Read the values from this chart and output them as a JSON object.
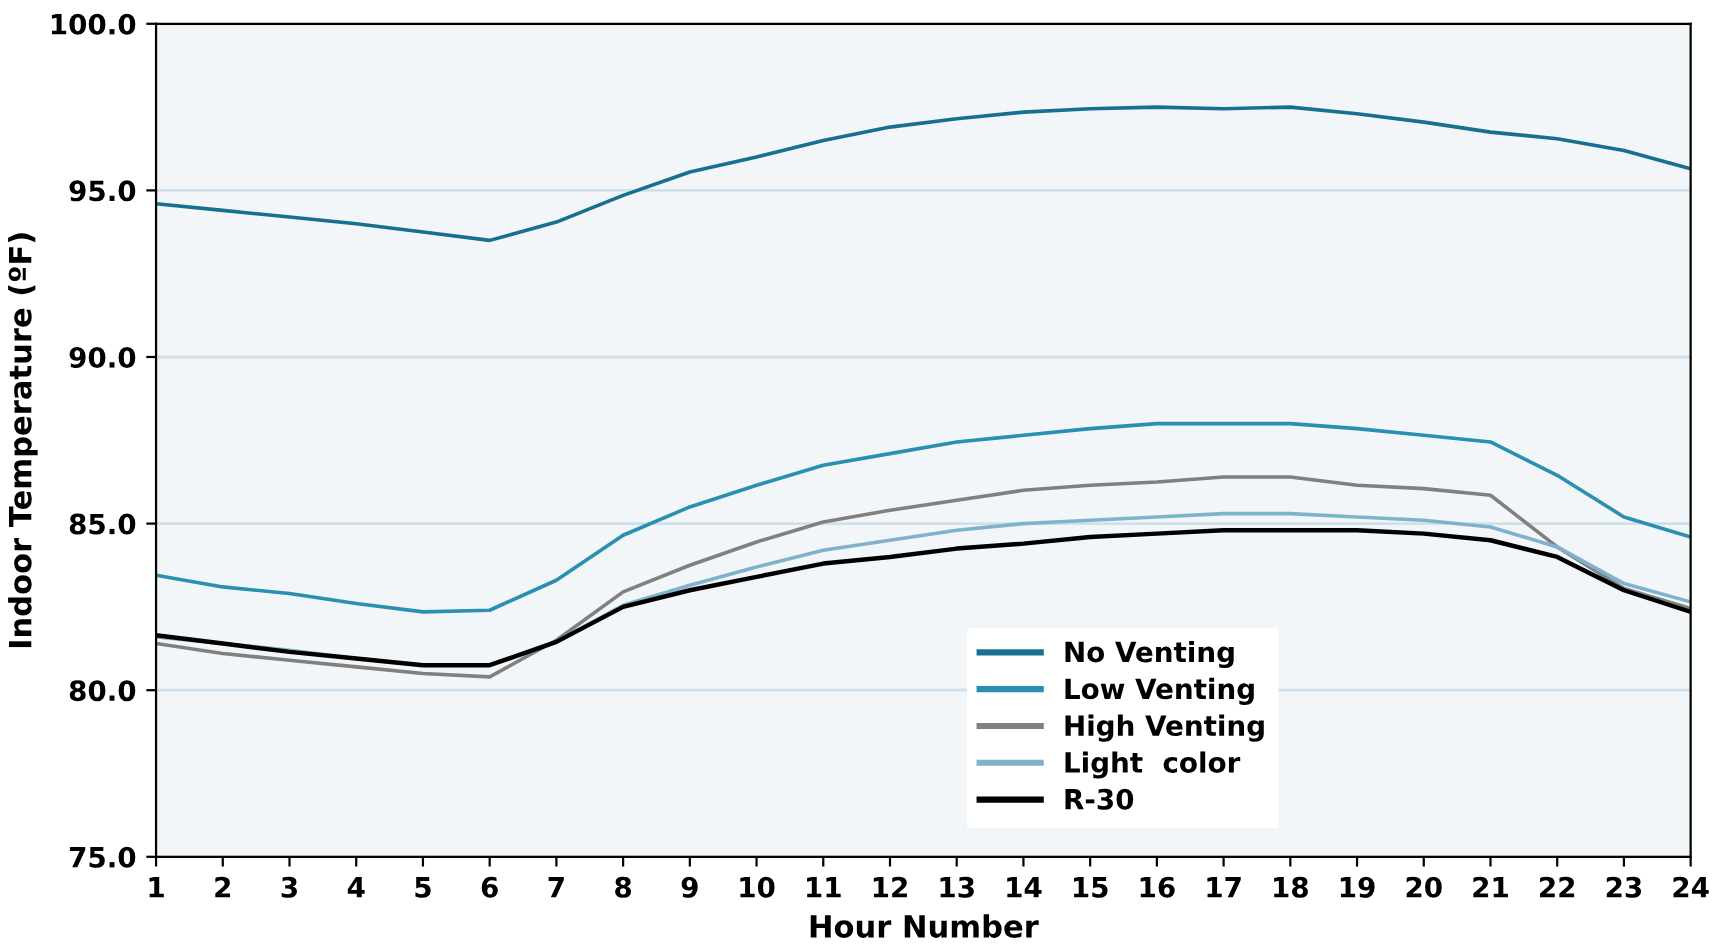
{
  "chart_data": {
    "type": "line",
    "xlabel": "Hour Number",
    "ylabel": "Indoor Temperature (ºF)",
    "x": [
      1,
      2,
      3,
      4,
      5,
      6,
      7,
      8,
      9,
      10,
      11,
      12,
      13,
      14,
      15,
      16,
      17,
      18,
      19,
      20,
      21,
      22,
      23,
      24
    ],
    "xlim": [
      1,
      24
    ],
    "xticks": [
      1,
      2,
      3,
      4,
      5,
      6,
      7,
      8,
      9,
      10,
      11,
      12,
      13,
      14,
      15,
      16,
      17,
      18,
      19,
      20,
      21,
      22,
      23,
      24
    ],
    "ylim": [
      75,
      100
    ],
    "yticks": [
      {
        "value": 75,
        "label": "75.0"
      },
      {
        "value": 80,
        "label": "80.0"
      },
      {
        "value": 85,
        "label": "85.0"
      },
      {
        "value": 90,
        "label": "90.0"
      },
      {
        "value": 95,
        "label": "95.0"
      },
      {
        "value": 100,
        "label": "100.0"
      }
    ],
    "grid": "y",
    "legend": "bottom",
    "marker": "none",
    "line_style": "solid",
    "series": [
      {
        "name": "No Venting",
        "color": "#17708f",
        "values": [
          94.6,
          94.4,
          94.2,
          94.0,
          93.75,
          93.5,
          94.05,
          94.85,
          95.55,
          96.0,
          96.5,
          96.9,
          97.15,
          97.35,
          97.45,
          97.5,
          97.45,
          97.5,
          97.3,
          97.05,
          96.75,
          96.55,
          96.2,
          95.65
        ]
      },
      {
        "name": "Low Venting",
        "color": "#2a8fb0",
        "values": [
          83.45,
          83.1,
          82.9,
          82.6,
          82.35,
          82.4,
          83.3,
          84.65,
          85.5,
          86.15,
          86.75,
          87.1,
          87.45,
          87.65,
          87.85,
          88.0,
          88.0,
          88.0,
          87.85,
          87.65,
          87.45,
          86.45,
          85.2,
          84.6
        ]
      },
      {
        "name": "High Venting",
        "color": "#808080",
        "values": [
          81.4,
          81.1,
          80.9,
          80.7,
          80.5,
          80.4,
          81.5,
          82.95,
          83.75,
          84.45,
          85.05,
          85.4,
          85.7,
          86.0,
          86.15,
          86.25,
          86.4,
          86.4,
          86.15,
          86.05,
          85.85,
          84.3,
          83.05,
          82.45
        ]
      },
      {
        "name": "Light  color",
        "color": "#7fb3cc",
        "values": [
          81.6,
          81.4,
          81.2,
          80.95,
          80.75,
          80.75,
          81.45,
          82.55,
          83.15,
          83.7,
          84.2,
          84.5,
          84.8,
          85.0,
          85.1,
          85.2,
          85.3,
          85.3,
          85.2,
          85.1,
          84.9,
          84.3,
          83.2,
          82.65
        ]
      },
      {
        "name": "R-30",
        "color": "#000000",
        "values": [
          81.65,
          81.4,
          81.15,
          80.95,
          80.75,
          80.75,
          81.45,
          82.5,
          83.0,
          83.4,
          83.8,
          84.0,
          84.25,
          84.4,
          84.6,
          84.7,
          84.8,
          84.8,
          84.8,
          84.7,
          84.5,
          84.0,
          83.0,
          82.35
        ]
      }
    ]
  }
}
